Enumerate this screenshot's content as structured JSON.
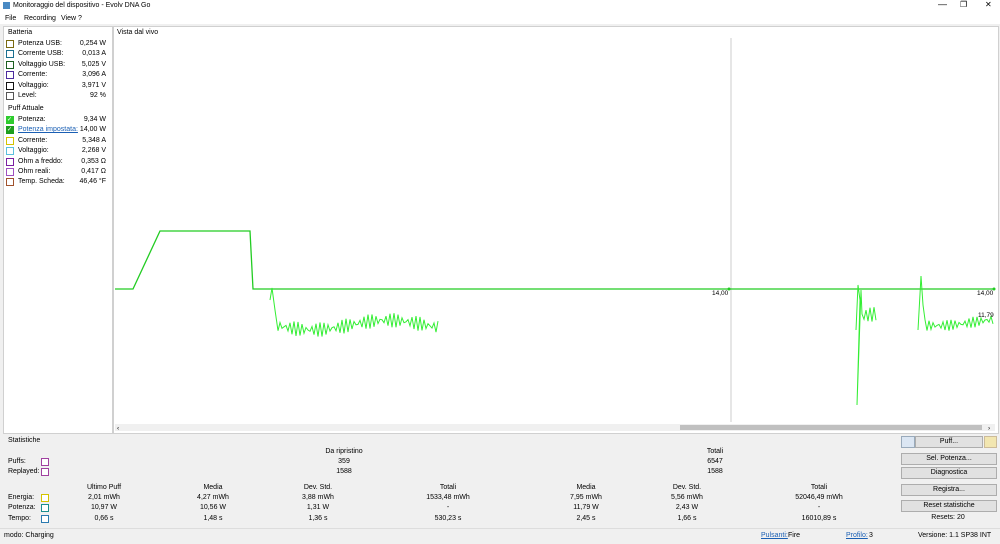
{
  "window": {
    "title": "Monitoraggio del dispositivo - Evolv DNA Go"
  },
  "menu": [
    "File",
    "Recording",
    "View",
    "?"
  ],
  "battery": {
    "title": "Batteria",
    "rows": [
      {
        "label": "Potenza USB:",
        "value": "0,254 W",
        "color": "#7a6a10"
      },
      {
        "label": "Corrente USB:",
        "value": "0,013 A",
        "color": "#1a6f8f"
      },
      {
        "label": "Voltaggio USB:",
        "value": "5,025 V",
        "color": "#1b5e20"
      },
      {
        "label": "Corrente:",
        "value": "3,096 A",
        "color": "#4b2a9e"
      },
      {
        "label": "Voltaggio:",
        "value": "3,971 V",
        "color": "#111111"
      },
      {
        "label": "Level:",
        "value": "92 %",
        "color": "#555555"
      }
    ]
  },
  "puff": {
    "title": "Puff Attuale",
    "rows": [
      {
        "label": "Potenza:",
        "value": "9,34 W",
        "color": "#2ecc2e",
        "checked": true
      },
      {
        "label": "Potenza impostata:",
        "value": "14,00 W",
        "color": "#1e9e1e",
        "checked": true,
        "link": true
      },
      {
        "label": "Corrente:",
        "value": "5,348 A",
        "color": "#d4c400"
      },
      {
        "label": "Voltaggio:",
        "value": "2,268 V",
        "color": "#5bc0de"
      },
      {
        "label": "Ohm a freddo:",
        "value": "0,353 Ω",
        "color": "#7b1fa2"
      },
      {
        "label": "Ohm reali:",
        "value": "0,417 Ω",
        "color": "#a050c0"
      },
      {
        "label": "Temp. Scheda:",
        "value": "46,46 °F",
        "color": "#a0522d"
      }
    ]
  },
  "live": {
    "title": "Vista dal vivo",
    "labels": [
      "14,00",
      "14,00",
      "11,79"
    ]
  },
  "stats": {
    "title": "Statistiche",
    "group_headers": [
      "Da ripristino",
      "Totali"
    ],
    "count_rows": [
      {
        "label": "Puffs:",
        "values": [
          "359",
          "6547"
        ]
      },
      {
        "label": "Replayed:",
        "values": [
          "1588",
          "1588"
        ]
      }
    ],
    "columns": [
      "Ultimo Puff",
      "Media",
      "Dev. Std.",
      "Totali",
      "Media",
      "Dev. Std.",
      "Totali"
    ],
    "rows": [
      {
        "label": "Energia:",
        "color": "#d4c400",
        "values": [
          "2,01 mWh",
          "4,27 mWh",
          "3,88 mWh",
          "1533,48 mWh",
          "7,95 mWh",
          "5,56 mWh",
          "52046,49 mWh"
        ]
      },
      {
        "label": "Potenza:",
        "color": "#1a8f8f",
        "values": [
          "10,97 W",
          "10,56 W",
          "1,31 W",
          "-",
          "11,79 W",
          "2,43 W",
          "-"
        ]
      },
      {
        "label": "Tempo:",
        "color": "#2a7ab0",
        "values": [
          "0,66 s",
          "1,48 s",
          "1,36 s",
          "530,23 s",
          "2,45 s",
          "1,66 s",
          "16010,89 s"
        ]
      }
    ]
  },
  "buttons": [
    "Puff...",
    "Sel. Potenza...",
    "Diagnostica",
    "Registra...",
    "Reset statistiche"
  ],
  "resets": "Resets: 20",
  "status": {
    "mode": "modo: Charging",
    "buttons_label": "Pulsanti:",
    "buttons_value": "Fire",
    "profile_label": "Profilo:",
    "profile_value": "3",
    "version": "Versione: 1.1 SP38 INT"
  }
}
